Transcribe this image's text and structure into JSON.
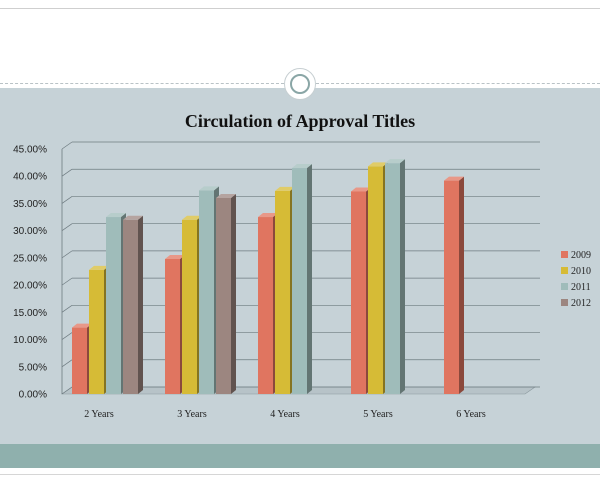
{
  "chart_data": {
    "type": "bar",
    "title": "Circulation of Approval Titles",
    "categories": [
      "2 Years",
      "3 Years",
      "4 Years",
      "5 Years",
      "6 Years"
    ],
    "y_ticks": [
      "0.00%",
      "5.00%",
      "10.00%",
      "15.00%",
      "20.00%",
      "25.00%",
      "30.00%",
      "35.00%",
      "40.00%",
      "45.00%"
    ],
    "ylim": [
      0,
      45
    ],
    "grid": true,
    "legend_position": "right",
    "series": [
      {
        "name": "2009",
        "color": "#e07560",
        "values": [
          12.2,
          24.8,
          32.5,
          37.2,
          39.2
        ]
      },
      {
        "name": "2010",
        "color": "#d6bb36",
        "values": [
          22.8,
          32.0,
          37.3,
          41.8,
          null
        ]
      },
      {
        "name": "2011",
        "color": "#9fbcba",
        "values": [
          32.5,
          37.4,
          41.5,
          42.4,
          null
        ]
      },
      {
        "name": "2012",
        "color": "#9c8680",
        "values": [
          32.0,
          36.0,
          null,
          null,
          null
        ]
      }
    ]
  }
}
